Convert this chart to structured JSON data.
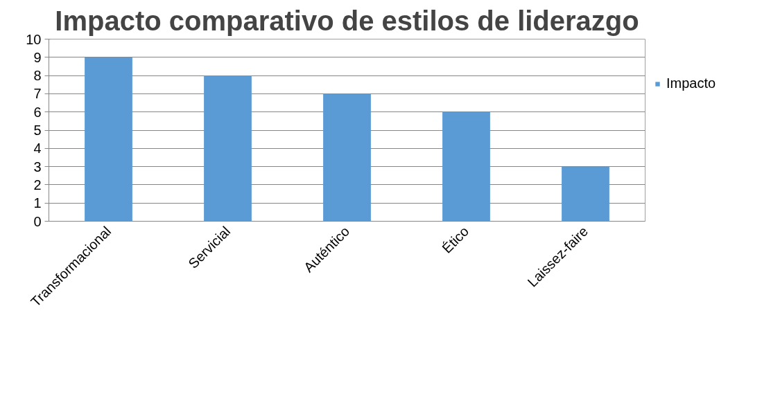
{
  "chart_data": {
    "type": "bar",
    "title": "Impacto comparativo de estilos de liderazgo",
    "categories": [
      "Transformacional",
      "Servicial",
      "Auténtico",
      "Ético",
      "Laissez-faire"
    ],
    "series": [
      {
        "name": "Impacto",
        "color": "#5b9bd5",
        "values": [
          9,
          8,
          7,
          6,
          3
        ]
      }
    ],
    "ylim": [
      0,
      10
    ],
    "yticks": [
      0,
      1,
      2,
      3,
      4,
      5,
      6,
      7,
      8,
      9,
      10
    ],
    "grid": "y",
    "legend": "right"
  }
}
